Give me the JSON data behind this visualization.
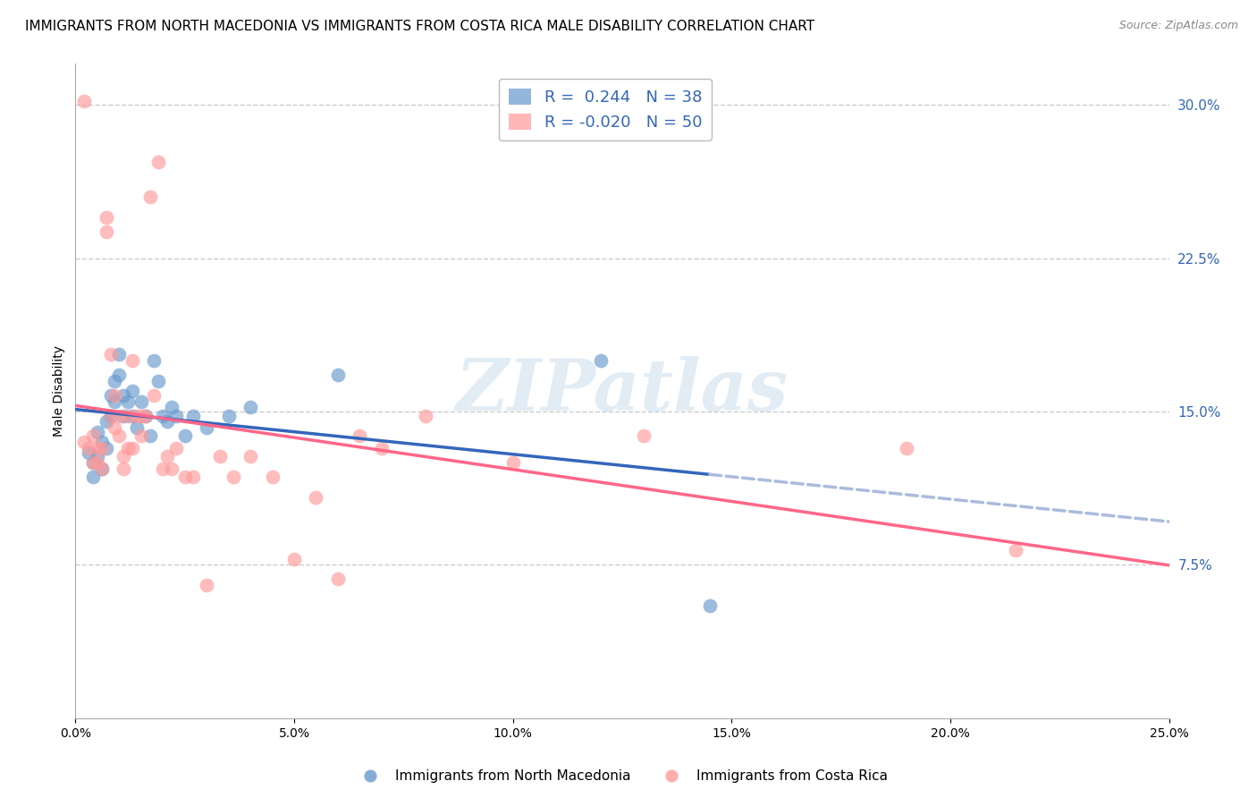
{
  "title": "IMMIGRANTS FROM NORTH MACEDONIA VS IMMIGRANTS FROM COSTA RICA MALE DISABILITY CORRELATION CHART",
  "source": "Source: ZipAtlas.com",
  "xlabel_ticks": [
    "0.0%",
    "5.0%",
    "10.0%",
    "15.0%",
    "20.0%",
    "25.0%"
  ],
  "ylabel_label": "Male Disability",
  "right_yticks": [
    "7.5%",
    "15.0%",
    "22.5%",
    "30.0%"
  ],
  "right_ytick_vals": [
    0.075,
    0.15,
    0.225,
    0.3
  ],
  "xlim": [
    0.0,
    0.25
  ],
  "ylim": [
    0.0,
    0.32
  ],
  "blue_color": "#6699CC",
  "pink_color": "#FF9999",
  "blue_line_color": "#3366BB",
  "pink_line_color": "#FF6688",
  "dashed_line_color": "#AABBDD",
  "legend_R_blue": "0.244",
  "legend_N_blue": "38",
  "legend_R_pink": "-0.020",
  "legend_N_pink": "50",
  "legend_label_blue": "Immigrants from North Macedonia",
  "legend_label_pink": "Immigrants from Costa Rica",
  "watermark": "ZIPatlas",
  "blue_scatter_x": [
    0.003,
    0.004,
    0.004,
    0.005,
    0.005,
    0.006,
    0.006,
    0.007,
    0.007,
    0.008,
    0.008,
    0.009,
    0.009,
    0.01,
    0.01,
    0.011,
    0.011,
    0.012,
    0.013,
    0.013,
    0.014,
    0.015,
    0.016,
    0.017,
    0.018,
    0.019,
    0.02,
    0.021,
    0.022,
    0.023,
    0.025,
    0.027,
    0.03,
    0.035,
    0.04,
    0.06,
    0.12,
    0.145
  ],
  "blue_scatter_y": [
    0.13,
    0.125,
    0.118,
    0.14,
    0.128,
    0.135,
    0.122,
    0.145,
    0.132,
    0.158,
    0.148,
    0.165,
    0.155,
    0.178,
    0.168,
    0.158,
    0.148,
    0.155,
    0.16,
    0.148,
    0.142,
    0.155,
    0.148,
    0.138,
    0.175,
    0.165,
    0.148,
    0.145,
    0.152,
    0.148,
    0.138,
    0.148,
    0.142,
    0.148,
    0.152,
    0.168,
    0.175,
    0.055
  ],
  "pink_scatter_x": [
    0.002,
    0.003,
    0.004,
    0.004,
    0.005,
    0.005,
    0.006,
    0.006,
    0.007,
    0.007,
    0.008,
    0.008,
    0.009,
    0.009,
    0.01,
    0.01,
    0.011,
    0.011,
    0.012,
    0.012,
    0.013,
    0.013,
    0.014,
    0.015,
    0.015,
    0.016,
    0.017,
    0.018,
    0.019,
    0.02,
    0.021,
    0.022,
    0.023,
    0.025,
    0.027,
    0.03,
    0.033,
    0.036,
    0.04,
    0.045,
    0.05,
    0.055,
    0.06,
    0.065,
    0.07,
    0.08,
    0.1,
    0.13,
    0.19,
    0.215
  ],
  "pink_scatter_y": [
    0.135,
    0.132,
    0.138,
    0.125,
    0.132,
    0.125,
    0.132,
    0.122,
    0.245,
    0.238,
    0.178,
    0.148,
    0.158,
    0.142,
    0.148,
    0.138,
    0.128,
    0.122,
    0.148,
    0.132,
    0.175,
    0.132,
    0.148,
    0.148,
    0.138,
    0.148,
    0.255,
    0.158,
    0.272,
    0.122,
    0.128,
    0.122,
    0.132,
    0.118,
    0.118,
    0.065,
    0.128,
    0.118,
    0.128,
    0.118,
    0.078,
    0.108,
    0.068,
    0.138,
    0.132,
    0.148,
    0.125,
    0.138,
    0.132,
    0.082
  ],
  "pink_scatter_x_outlier": [
    0.002
  ],
  "pink_scatter_y_outlier": [
    0.302
  ],
  "grid_color": "#CCCCCC",
  "title_fontsize": 11,
  "axis_label_fontsize": 10,
  "tick_fontsize": 10
}
